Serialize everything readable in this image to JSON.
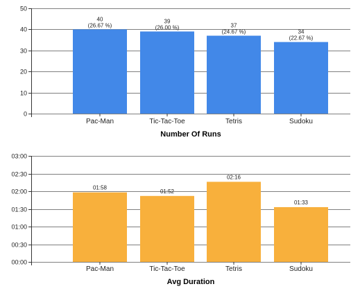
{
  "colors": {
    "runs_bar": "#4288E8",
    "duration_bar": "#F8B03C",
    "grid": "#000000",
    "axis": "#333333"
  },
  "chart_data": [
    {
      "type": "bar",
      "title": "Number Of Runs",
      "categories": [
        "Pac-Man",
        "Tic-Tac-Toe",
        "Tetris",
        "Sudoku"
      ],
      "values": [
        40,
        39,
        37,
        34
      ],
      "data_labels": [
        "40",
        "39",
        "37",
        "34"
      ],
      "data_sublabels": [
        "(26.67 %)",
        "(26.00 %)",
        "(24.67 %)",
        "(22.67 %)"
      ],
      "ylim": [
        0,
        50
      ],
      "yticks": [
        0,
        10,
        20,
        30,
        40,
        50
      ],
      "ytick_labels": [
        "0",
        "10",
        "20",
        "30",
        "40",
        "50"
      ],
      "grid": true,
      "bar_color_key": "runs_bar"
    },
    {
      "type": "bar",
      "title": "Avg Duration",
      "categories": [
        "Pac-Man",
        "Tic-Tac-Toe",
        "Tetris",
        "Sudoku"
      ],
      "values": [
        118,
        112,
        136,
        93
      ],
      "data_labels": [
        "01:58",
        "01:52",
        "02:16",
        "01:33"
      ],
      "data_sublabels": [
        "",
        "",
        "",
        ""
      ],
      "ylim": [
        0,
        180
      ],
      "yticks": [
        0,
        30,
        60,
        90,
        120,
        150,
        180
      ],
      "ytick_labels": [
        "00:00",
        "00:30",
        "01:00",
        "01:30",
        "02:00",
        "02:30",
        "03:00"
      ],
      "grid": true,
      "bar_color_key": "duration_bar"
    }
  ]
}
